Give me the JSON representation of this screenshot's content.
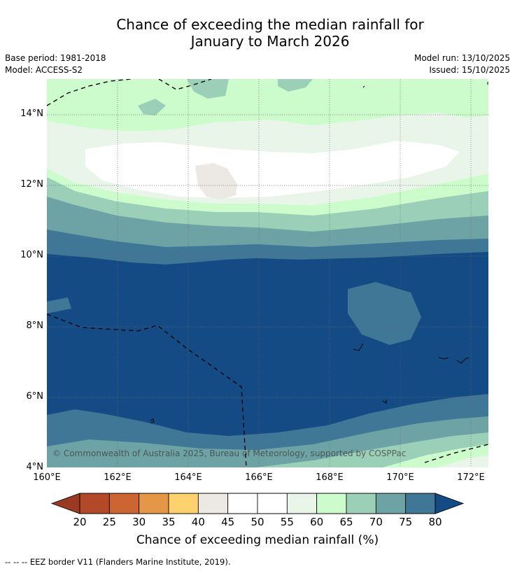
{
  "title": {
    "line1": "Chance of exceeding the median rainfall for",
    "line2": "January to March 2026"
  },
  "meta": {
    "base_period": "Base period: 1981-2018",
    "model": "Model: ACCESS-S2",
    "model_run": "Model run: 13/10/2025",
    "issued": "Issued: 15/10/2025"
  },
  "map": {
    "lat_labels": [
      "14°N",
      "12°N",
      "10°N",
      "8°N",
      "6°N",
      "4°N"
    ],
    "lon_labels": [
      "160°E",
      "162°E",
      "164°E",
      "166°E",
      "168°E",
      "170°E",
      "172°E"
    ],
    "copyright": "© Commonwealth of Australia 2025, Bureau of Meteorology, supported by COSPPac"
  },
  "colorbar": {
    "labels": [
      "20",
      "25",
      "30",
      "35",
      "40",
      "45",
      "50",
      "55",
      "60",
      "65",
      "70",
      "75",
      "80"
    ],
    "colors": {
      "below_20": "#9a3a22",
      "b20_25": "#b24a2a",
      "b25_30": "#cc6434",
      "b30_35": "#e39747",
      "b35_40": "#fdd16e",
      "b40_45": "#ece9e4",
      "b45_50": "#ffffff",
      "b50_55": "#ffffff",
      "b55_60": "#eaf5ea",
      "b60_65": "#ccfccc",
      "b65_70": "#9ccfb8",
      "b70_75": "#6ea3a5",
      "b75_80": "#407696",
      "above_80": "#144b84"
    },
    "title": "Chance of exceeding median rainfall (%)"
  },
  "footnote": "--  --  -- EEZ border V11 (Flanders Marine Institute, 2019)."
}
